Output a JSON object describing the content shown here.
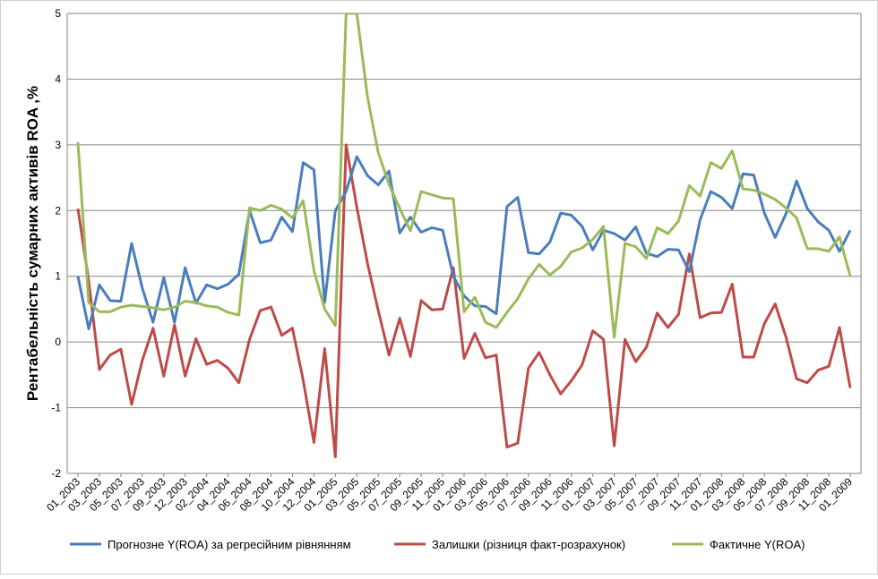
{
  "chart_data": {
    "type": "line",
    "ylabel": "Рентабельність сумарних активів ROA ,%",
    "ylim": [
      -2,
      5
    ],
    "yticks": [
      -2,
      -1,
      0,
      1,
      2,
      3,
      4,
      5
    ],
    "grid": "horizontal",
    "legend_position": "bottom",
    "x_tick_labels": [
      "01_2003",
      "03_2003",
      "05_2003",
      "07_2003",
      "09_2003",
      "12_2003",
      "02_2004",
      "04_2004",
      "06_2004",
      "08_2004",
      "10_2004",
      "12_2004",
      "01_2005",
      "03_2005",
      "05_2005",
      "07_2005",
      "09_2005",
      "11_2005",
      "01_2006",
      "03_2006",
      "05_2006",
      "07_2006",
      "09_2006",
      "11_2006",
      "01_2007",
      "03_2007",
      "05_2007",
      "07_2007",
      "09_2007",
      "11_2007",
      "01_2008",
      "03_2008",
      "05_2008",
      "07_2008",
      "09_2008",
      "11_2008",
      "01_2009"
    ],
    "series": [
      {
        "name": "Прогнозне Y(ROA) за регресійним рівнянням",
        "color": "#4a7ebb",
        "values": [
          1.0,
          0.2,
          0.87,
          0.63,
          0.62,
          1.5,
          0.82,
          0.3,
          0.98,
          0.3,
          1.13,
          0.59,
          0.87,
          0.81,
          0.88,
          1.03,
          2.0,
          1.51,
          1.55,
          1.9,
          1.68,
          2.73,
          2.62,
          0.6,
          2.0,
          2.29,
          2.82,
          2.53,
          2.39,
          2.6,
          1.66,
          1.9,
          1.67,
          1.74,
          1.7,
          1.0,
          0.7,
          0.55,
          0.54,
          0.43,
          2.06,
          2.2,
          1.36,
          1.34,
          1.52,
          1.96,
          1.93,
          1.76,
          1.4,
          1.7,
          1.65,
          1.55,
          1.75,
          1.35,
          1.3,
          1.41,
          1.4,
          1.07,
          1.86,
          2.29,
          2.2,
          2.03,
          2.56,
          2.54,
          1.96,
          1.59,
          1.95,
          2.45,
          2.03,
          1.83,
          1.7,
          1.38,
          1.7
        ]
      },
      {
        "name": "Залишки (різниця факт-розрахунок)",
        "color": "#be4b48",
        "values": [
          2.03,
          0.93,
          -0.42,
          -0.2,
          -0.11,
          -0.95,
          -0.28,
          0.21,
          -0.52,
          0.26,
          -0.52,
          0.05,
          -0.34,
          -0.28,
          -0.4,
          -0.62,
          0.04,
          0.48,
          0.53,
          0.1,
          0.21,
          -0.58,
          -1.53,
          -0.1,
          -1.75,
          3.0,
          2.05,
          1.19,
          0.48,
          -0.2,
          0.36,
          -0.22,
          0.63,
          0.49,
          0.5,
          1.13,
          -0.25,
          0.13,
          -0.24,
          -0.2,
          -1.6,
          -1.54,
          -0.4,
          -0.16,
          -0.5,
          -0.79,
          -0.59,
          -0.35,
          0.17,
          0.04,
          -1.58,
          0.04,
          -0.3,
          -0.08,
          0.44,
          0.22,
          0.42,
          1.34,
          0.37,
          0.44,
          0.45,
          0.88,
          -0.23,
          -0.23,
          0.28,
          0.58,
          0.08,
          -0.56,
          -0.62,
          -0.43,
          -0.37,
          0.22,
          -0.7
        ]
      },
      {
        "name": "Фактичне Y(ROA)",
        "color": "#9bbb59",
        "values": [
          3.04,
          0.6,
          0.46,
          0.46,
          0.53,
          0.56,
          0.54,
          0.52,
          0.49,
          0.53,
          0.62,
          0.6,
          0.55,
          0.53,
          0.45,
          0.41,
          2.04,
          2.0,
          2.08,
          2.02,
          1.89,
          2.15,
          1.09,
          0.5,
          0.25,
          5.0,
          5.0,
          3.72,
          2.88,
          2.4,
          2.03,
          1.69,
          2.29,
          2.24,
          2.19,
          2.18,
          0.46,
          0.68,
          0.3,
          0.22,
          0.45,
          0.66,
          0.96,
          1.18,
          1.02,
          1.15,
          1.37,
          1.43,
          1.56,
          1.76,
          0.07,
          1.5,
          1.45,
          1.27,
          1.74,
          1.65,
          1.84,
          2.38,
          2.22,
          2.73,
          2.64,
          2.91,
          2.33,
          2.31,
          2.25,
          2.17,
          2.04,
          1.89,
          1.42,
          1.42,
          1.38,
          1.6,
          1.0
        ]
      }
    ]
  }
}
